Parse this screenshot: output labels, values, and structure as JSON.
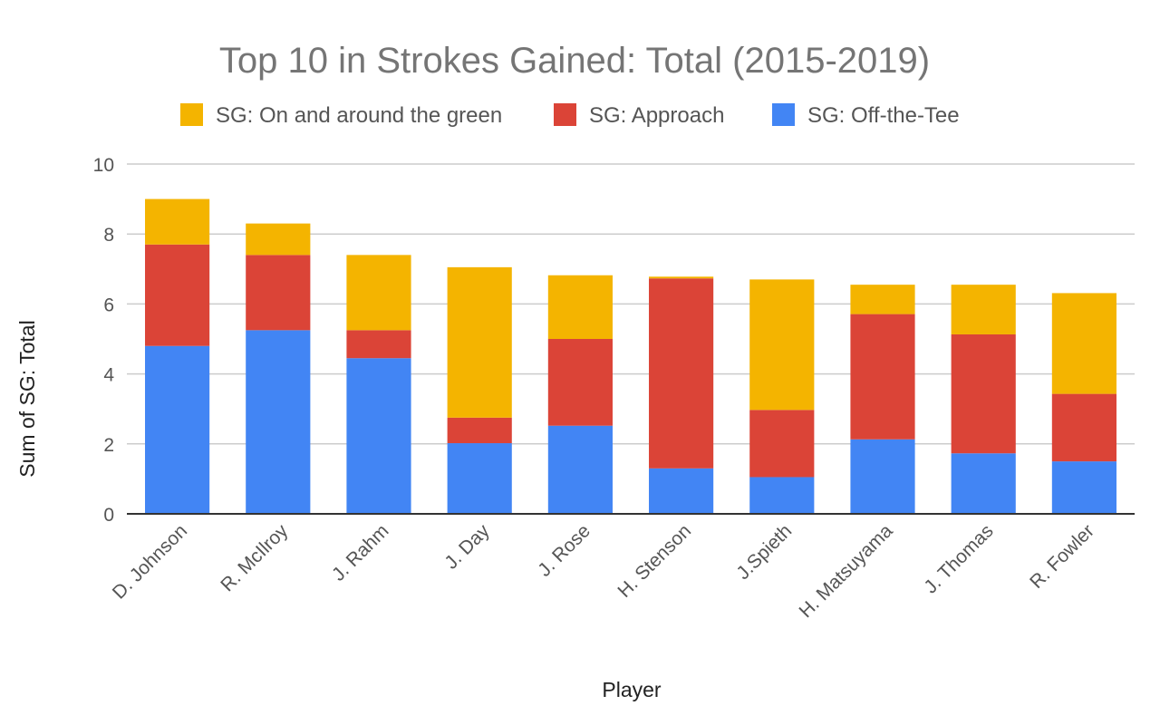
{
  "chart_data": {
    "type": "bar",
    "stacked": true,
    "title": "Top 10 in Strokes Gained: Total (2015-2019)",
    "xlabel": "Player",
    "ylabel": "Sum of SG: Total",
    "ylim": [
      0,
      10
    ],
    "yticks": [
      0,
      2,
      4,
      6,
      8,
      10
    ],
    "grid": true,
    "legend_position": "top",
    "categories": [
      "D. Johnson",
      "R. McIlroy",
      "J. Rahm",
      "J. Day",
      "J. Rose",
      "H. Stenson",
      "J.Spieth",
      "H. Matsuyama",
      "J. Thomas",
      "R. Fowler"
    ],
    "series": [
      {
        "name": "SG: Off-the-Tee",
        "color": "#4285f4",
        "values": [
          4.8,
          5.25,
          4.45,
          2.02,
          2.52,
          1.3,
          1.05,
          2.13,
          1.73,
          1.5
        ]
      },
      {
        "name": "SG: Approach",
        "color": "#db4437",
        "values": [
          2.9,
          2.15,
          0.8,
          0.73,
          2.48,
          5.43,
          1.92,
          3.58,
          3.4,
          1.93
        ]
      },
      {
        "name": "SG: On and around the green",
        "color": "#f4b400",
        "values": [
          1.3,
          0.9,
          2.15,
          4.3,
          1.82,
          0.05,
          3.73,
          0.84,
          1.42,
          2.88
        ]
      }
    ],
    "legend_order": [
      "SG: On and around the green",
      "SG: Approach",
      "SG: Off-the-Tee"
    ]
  }
}
